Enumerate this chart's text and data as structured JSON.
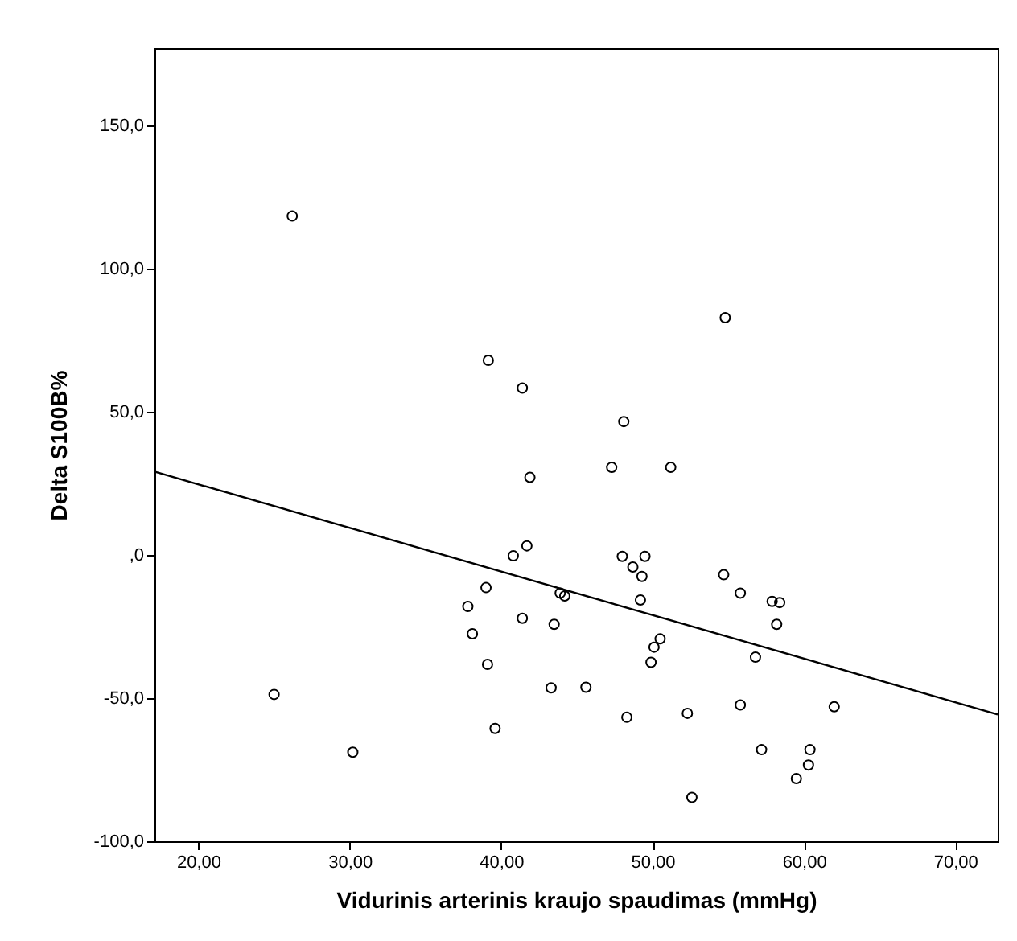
{
  "chart_data": {
    "type": "scatter",
    "xlabel": "Vidurinis arterinis kraujo spaudimas (mmHg)",
    "ylabel": "Delta S100B%",
    "xlim": [
      17.1,
      72.8
    ],
    "ylim": [
      -100,
      177
    ],
    "xticks": [
      {
        "value": 20,
        "label": "20,00"
      },
      {
        "value": 30,
        "label": "30,00"
      },
      {
        "value": 40,
        "label": "40,00"
      },
      {
        "value": 50,
        "label": "50,00"
      },
      {
        "value": 60,
        "label": "60,00"
      },
      {
        "value": 70,
        "label": "70,00"
      }
    ],
    "yticks": [
      {
        "value": -100,
        "label": "-100,0"
      },
      {
        "value": -50,
        "label": "-50,0"
      },
      {
        "value": 0,
        "label": ",0"
      },
      {
        "value": 50,
        "label": "50,0"
      },
      {
        "value": 100,
        "label": "100,0"
      },
      {
        "value": 150,
        "label": "150,0"
      }
    ],
    "grid": false,
    "series": [
      {
        "marker": "circle",
        "color": "#000000",
        "x": [
          26.2,
          54.8,
          39.15,
          41.4,
          48.1,
          47.3,
          51.2,
          41.9,
          41.7,
          40.8,
          48.0,
          49.5,
          48.7,
          49.3,
          54.7,
          39.0,
          43.9,
          44.2,
          49.2,
          55.8,
          57.9,
          58.4,
          37.8,
          41.4,
          43.5,
          58.2,
          38.1,
          50.5,
          50.1,
          56.8,
          39.1,
          49.9,
          43.3,
          45.6,
          25.0,
          55.8,
          62.0,
          52.3,
          48.3,
          39.6,
          57.2,
          60.4,
          30.2,
          60.3,
          59.5,
          52.6
        ],
        "values": [
          118.4,
          82.9,
          68.0,
          58.3,
          46.6,
          30.6,
          30.6,
          27.1,
          3.2,
          -0.3,
          -0.5,
          -0.5,
          -4.2,
          -7.5,
          -6.9,
          -11.4,
          -13.3,
          -14.3,
          -15.7,
          -13.3,
          -16.2,
          -16.6,
          -18.0,
          -22.1,
          -24.2,
          -24.2,
          -27.5,
          -29.3,
          -32.2,
          -35.7,
          -38.2,
          -37.5,
          -46.4,
          -46.2,
          -48.7,
          -52.4,
          -53.0,
          -55.3,
          -56.7,
          -60.6,
          -68.0,
          -68.0,
          -68.9,
          -73.4,
          -78.1,
          -84.7
        ]
      },
      {
        "type": "line",
        "color": "#000000",
        "line_style": "solid",
        "x": [
          17.1,
          72.8
        ],
        "values": [
          29.1,
          -55.7
        ]
      }
    ]
  }
}
